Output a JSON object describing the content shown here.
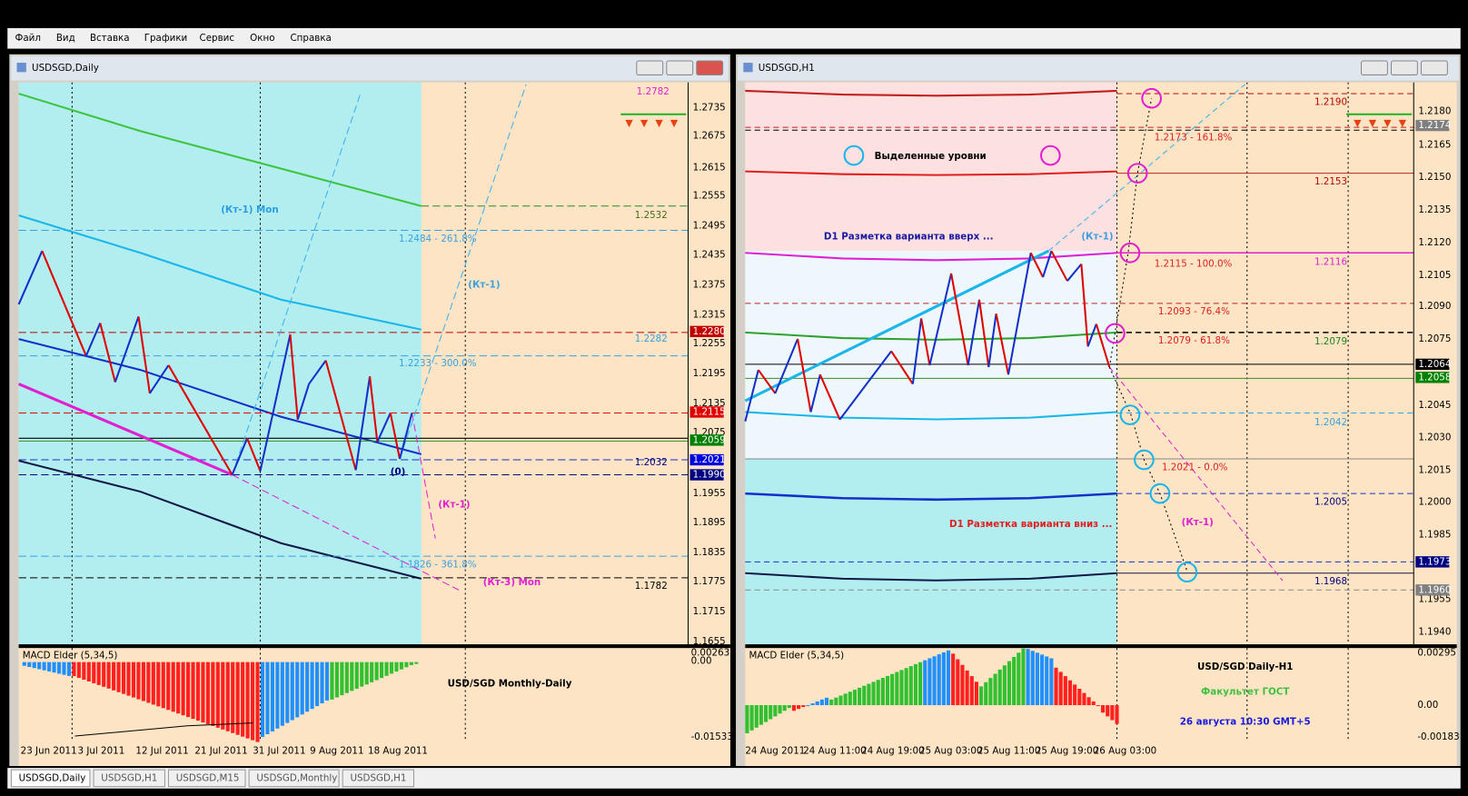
{
  "menu": [
    "Файл",
    "Вид",
    "Вставка",
    "Графики",
    "Сервис",
    "Окно",
    "Справка"
  ],
  "tabs": [
    "USDSGD,Daily",
    "USDSGD,H1",
    "USDSGD,M15",
    "USDSGD,Monthly",
    "USDSGD,H1"
  ],
  "left_window": {
    "title": "USDSGD,Daily",
    "price_axis": [
      "1.2735",
      "1.2675",
      "1.2615",
      "1.2555",
      "1.2495",
      "1.2435",
      "1.2375",
      "1.2315",
      "1.2255",
      "1.2195",
      "1.2135",
      "1.2075",
      "1.1955",
      "1.1895",
      "1.1835",
      "1.1775",
      "1.1715",
      "1.1655"
    ],
    "price_tags": [
      "1.2280",
      "1.2115",
      "1.2059",
      "1.2021",
      "1.1990"
    ],
    "annotations": [
      "1.2782",
      "(Кт-1) Mon",
      "1.2532",
      "1.2484 - 261.8%",
      "(Кт-1)",
      "1.2282",
      "1.2233 - 300.0%",
      "1.2032",
      "(0)",
      "(Кт-1)",
      "1.1826 - 361.8%",
      "(Кт-3) Mon",
      "1.1782"
    ],
    "macd": {
      "label": "MACD Elder (5,34,5)",
      "scale": [
        "0.00263",
        "0.00",
        "-0.01533"
      ],
      "caption": "USD/SGD Monthly-Daily"
    },
    "time_axis": [
      "23 Jun 2011",
      "3 Jul 2011",
      "12 Jul 2011",
      "21 Jul 2011",
      "31 Jul 2011",
      "9 Aug 2011",
      "18 Aug 2011"
    ]
  },
  "right_window": {
    "title": "USDSGD,H1",
    "price_axis": [
      "1.2180",
      "1.2165",
      "1.2150",
      "1.2135",
      "1.2120",
      "1.2105",
      "1.2090",
      "1.2075",
      "1.2045",
      "1.2030",
      "1.2015",
      "1.2000",
      "1.1985",
      "1.1955",
      "1.1940"
    ],
    "price_tags": [
      "1.2174",
      "1.2064",
      "1.2058",
      "1.1973",
      "1.1960"
    ],
    "annotations": [
      "1.2190",
      "Выделенные уровни",
      "1.2173 - 161.8%",
      "1.2153",
      "D1 Разметка варианта вверх ...",
      "(Кт-1)",
      "1.2116",
      "1.2115 - 100.0%",
      "1.2093 - 76.4%",
      "1.2079 - 61.8%",
      "1.2079",
      "1.2042",
      "1.2021 - 0.0%",
      "1.2005",
      "D1 Разметка варианта вниз ...",
      "(Кт-1)",
      "1.1968"
    ],
    "macd": {
      "label": "MACD Elder (5,34,5)",
      "scale": [
        "0.00295",
        "0.00",
        "-0.00183"
      ],
      "caption": "USD/SGD Daily-H1",
      "subcaption": "Факультет ГОСТ",
      "timestamp": "26 августа 10:30   GMT+5"
    },
    "time_axis": [
      "24 Aug 2011",
      "24 Aug 11:00",
      "24 Aug 19:00",
      "25 Aug 03:00",
      "25 Aug 11:00",
      "25 Aug 19:00",
      "26 Aug 03:00"
    ]
  }
}
